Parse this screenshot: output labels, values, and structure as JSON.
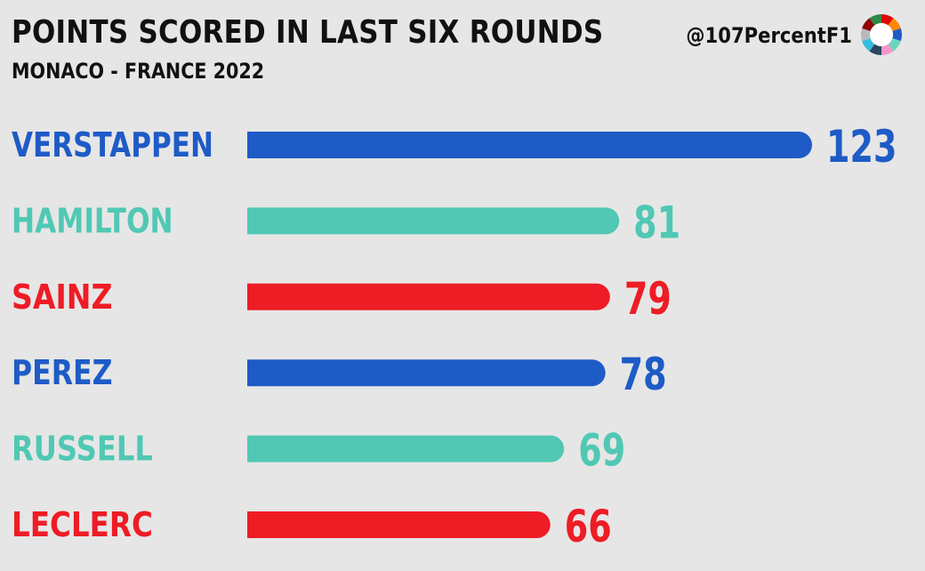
{
  "header": {
    "title": "POINTS SCORED IN LAST SIX ROUNDS",
    "subtitle": "MONACO - FRANCE 2022",
    "handle": "@107PercentF1"
  },
  "logo": {
    "icon": "donut-logo-icon",
    "colors": [
      "#e10600",
      "#ff8700",
      "#1e5bc6",
      "#6cd3bf",
      "#f596c8",
      "#2b4562",
      "#37bedd",
      "#b6babd",
      "#900000",
      "#2f8a4a"
    ]
  },
  "chart_data": {
    "type": "bar",
    "orientation": "horizontal",
    "title": "POINTS SCORED IN LAST SIX ROUNDS",
    "subtitle": "MONACO - FRANCE 2022",
    "categories": [
      "VERSTAPPEN",
      "HAMILTON",
      "SAINZ",
      "PEREZ",
      "RUSSELL",
      "LECLERC"
    ],
    "values": [
      123,
      81,
      79,
      78,
      69,
      66
    ],
    "colors": [
      "#1e5bc6",
      "#50c8b4",
      "#ee1c25",
      "#1e5bc6",
      "#50c8b4",
      "#ee1c25"
    ],
    "grid": false,
    "legend": "none"
  }
}
